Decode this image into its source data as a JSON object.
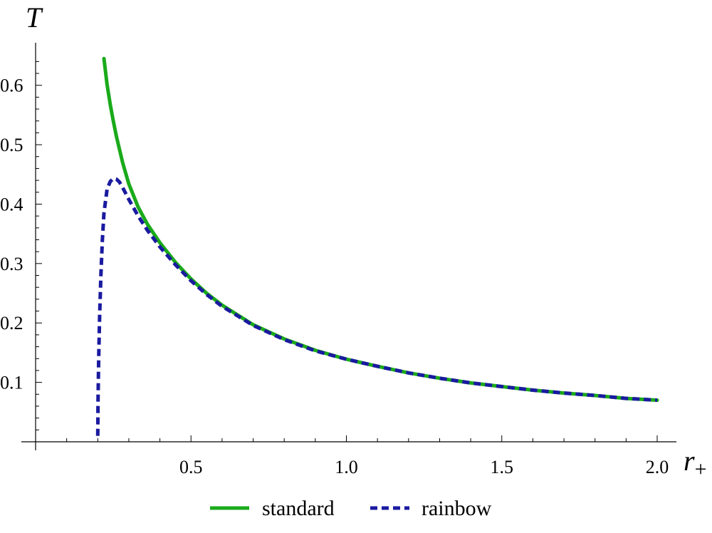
{
  "chart_data": {
    "type": "line",
    "xlabel": "r",
    "xlabel_sub": "+",
    "ylabel": "T",
    "xlim": [
      0.0,
      2.0
    ],
    "ylim": [
      0.0,
      0.65
    ],
    "x_ticks": [
      0.5,
      1.0,
      1.5,
      2.0
    ],
    "x_tick_labels": [
      "0.5",
      "1.0",
      "1.5",
      "2.0"
    ],
    "y_ticks": [
      0.1,
      0.2,
      0.3,
      0.4,
      0.5,
      0.6
    ],
    "y_tick_labels": [
      "0.1",
      "0.2",
      "0.3",
      "0.4",
      "0.5",
      "0.6"
    ],
    "grid": false,
    "legend_position": "bottom-center",
    "series": [
      {
        "name": "standard",
        "color": "#1aaa1a",
        "style": "solid",
        "x": [
          0.22,
          0.23,
          0.24,
          0.25,
          0.26,
          0.28,
          0.3,
          0.33,
          0.36,
          0.4,
          0.45,
          0.5,
          0.55,
          0.6,
          0.7,
          0.8,
          0.9,
          1.0,
          1.1,
          1.2,
          1.3,
          1.4,
          1.5,
          1.6,
          1.7,
          1.8,
          1.9,
          2.0
        ],
        "y": [
          0.645,
          0.601,
          0.568,
          0.54,
          0.514,
          0.47,
          0.434,
          0.395,
          0.366,
          0.335,
          0.302,
          0.274,
          0.25,
          0.23,
          0.197,
          0.173,
          0.154,
          0.139,
          0.127,
          0.116,
          0.107,
          0.099,
          0.093,
          0.087,
          0.082,
          0.078,
          0.073,
          0.07
        ]
      },
      {
        "name": "rainbow",
        "color": "#1a1aa0",
        "style": "dashed",
        "x": [
          0.2,
          0.201,
          0.203,
          0.206,
          0.21,
          0.215,
          0.22,
          0.23,
          0.24,
          0.25,
          0.26,
          0.27,
          0.28,
          0.3,
          0.33,
          0.36,
          0.4,
          0.45,
          0.5,
          0.55,
          0.6,
          0.7,
          0.8,
          0.9,
          1.0,
          1.1,
          1.2,
          1.3,
          1.4,
          1.5,
          1.6,
          1.7,
          1.8,
          1.9,
          2.0
        ],
        "y": [
          0.01,
          0.07,
          0.14,
          0.21,
          0.28,
          0.34,
          0.385,
          0.425,
          0.438,
          0.443,
          0.442,
          0.437,
          0.428,
          0.408,
          0.38,
          0.356,
          0.328,
          0.298,
          0.271,
          0.248,
          0.228,
          0.196,
          0.172,
          0.153,
          0.139,
          0.127,
          0.116,
          0.107,
          0.099,
          0.093,
          0.087,
          0.082,
          0.078,
          0.073,
          0.07
        ]
      }
    ]
  }
}
